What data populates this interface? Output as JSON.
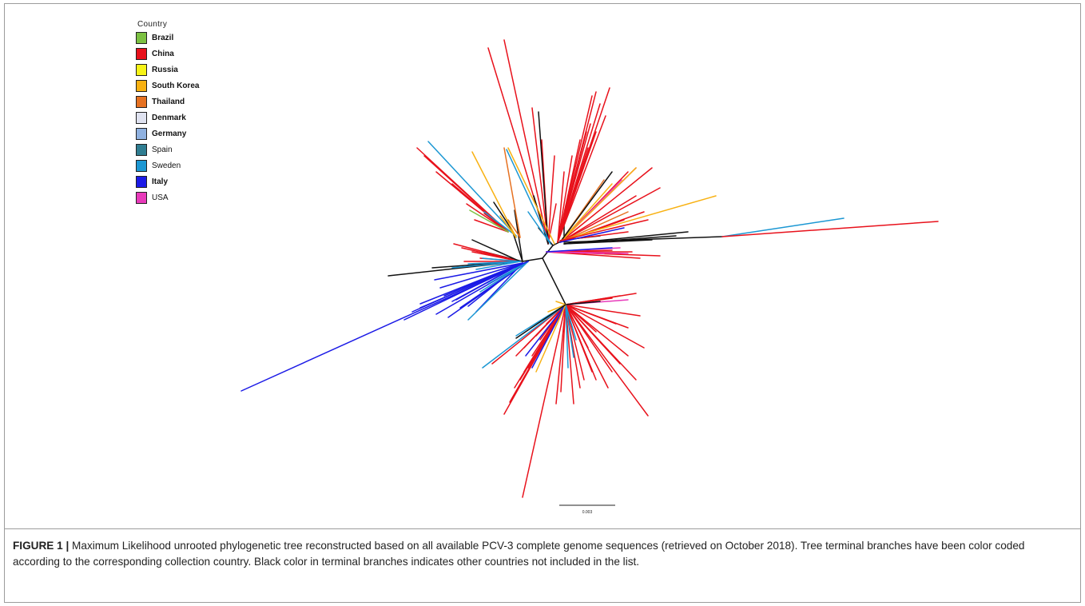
{
  "legend": {
    "title": "Country",
    "items": [
      {
        "label": "Brazil",
        "color": "#7cc142",
        "bold": true
      },
      {
        "label": "China",
        "color": "#e8111b",
        "bold": true
      },
      {
        "label": "Russia",
        "color": "#f6f317",
        "bold": true
      },
      {
        "label": "South Korea",
        "color": "#f8b112",
        "bold": true
      },
      {
        "label": "Thailand",
        "color": "#e67121",
        "bold": true
      },
      {
        "label": "Denmark",
        "color": "#dfe2f0",
        "bold": true
      },
      {
        "label": "Germany",
        "color": "#8fb1e0",
        "bold": true
      },
      {
        "label": "Spain",
        "color": "#2f7d91",
        "bold": false
      },
      {
        "label": "Sweden",
        "color": "#1b97d3",
        "bold": false
      },
      {
        "label": "Italy",
        "color": "#1b1ae6",
        "bold": true
      },
      {
        "label": "USA",
        "color": "#e83aba",
        "bold": false
      }
    ]
  },
  "scale_bar": {
    "label": "0.003"
  },
  "caption": {
    "figure_label": "FIGURE 1 |",
    "text": " Maximum Likelihood unrooted phylogenetic tree reconstructed based on all available PCV-3 complete genome sequences (retrieved on October 2018). Tree terminal branches have been color coded according to the corresponding collection country. Black color in terminal branches indicates other countries not included in the list."
  }
}
